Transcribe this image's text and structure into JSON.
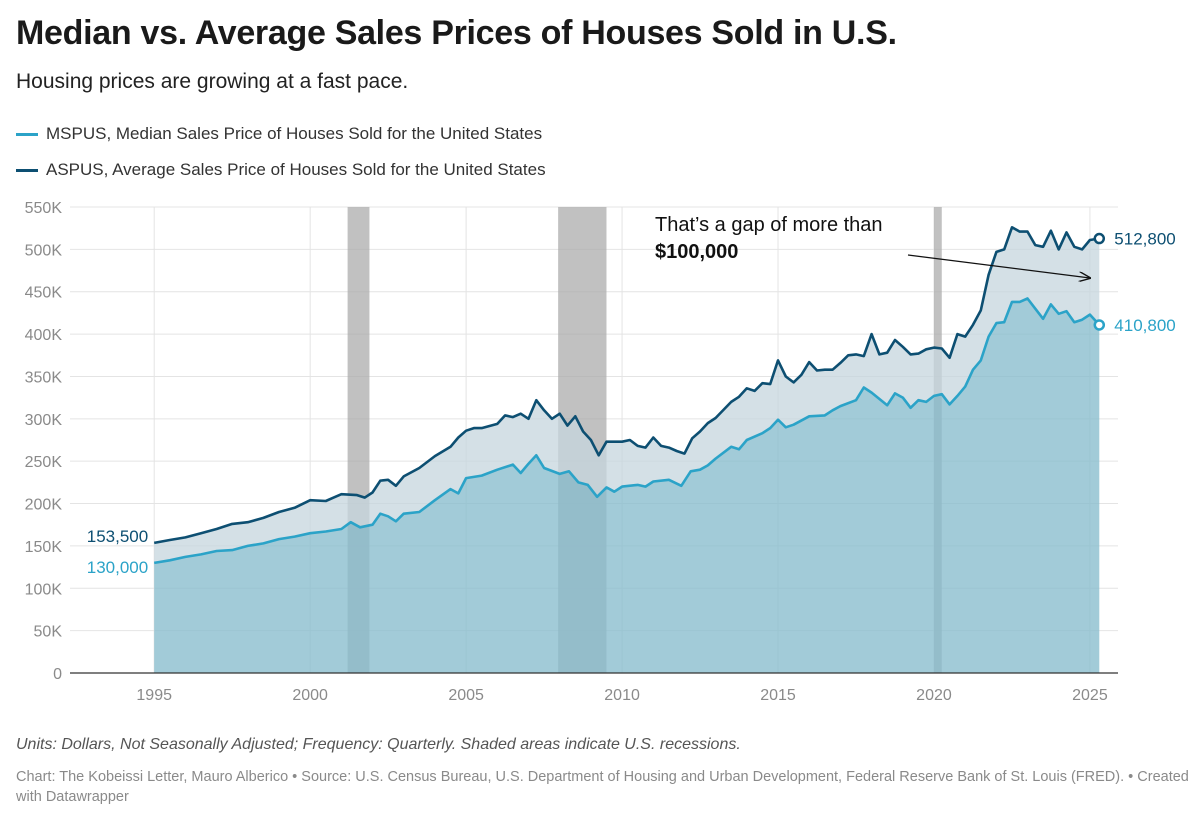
{
  "title": "Median vs. Average Sales Prices of Houses Sold in U.S.",
  "subtitle": "Housing prices are growing at a fast pace.",
  "notes": "Units: Dollars, Not Seasonally Adjusted; Frequency: Quarterly. Shaded areas indicate U.S. recessions.",
  "credit": "Chart: The Kobeissi Letter, Mauro Alberico • Source: U.S. Census Bureau, U.S. Department of Housing and Urban Development, Federal Reserve Bank of St. Louis (FRED). • Created with Datawrapper",
  "annotation": {
    "line1": "That’s a gap of more than",
    "line2": "$100,000"
  },
  "colors": {
    "median": "#2ba3c8",
    "average": "#0d4f72",
    "median_area": "#88bccd",
    "gap_area": "#c5d6dd",
    "recession": "#a9a9a9",
    "grid": "#e4e4e4"
  },
  "chart_data": {
    "type": "area",
    "x_label": "",
    "y_label": "",
    "xlim": [
      1992.3,
      2025.9
    ],
    "ylim": [
      0,
      550000
    ],
    "x_ticks": [
      1995,
      2000,
      2005,
      2010,
      2015,
      2020,
      2025
    ],
    "x_tick_labels": [
      "1995",
      "2000",
      "2005",
      "2010",
      "2015",
      "2020",
      "2025"
    ],
    "y_ticks": [
      0,
      50000,
      100000,
      150000,
      200000,
      250000,
      300000,
      350000,
      400000,
      450000,
      500000,
      550000
    ],
    "y_tick_labels": [
      "0",
      "50K",
      "100K",
      "150K",
      "200K",
      "250K",
      "300K",
      "350K",
      "400K",
      "450K",
      "500K",
      "550K"
    ],
    "grid": true,
    "legend_position": "top-left",
    "recessions": [
      [
        2001.2,
        2001.9
      ],
      [
        2007.95,
        2009.5
      ],
      [
        2020.0,
        2020.25
      ]
    ],
    "series": [
      {
        "name": "MSPUS, Median Sales Price of Houses Sold for the United States",
        "start_label": "130,000",
        "end_label": "410,800",
        "points": [
          [
            1995.0,
            130000
          ],
          [
            1995.5,
            133000
          ],
          [
            1996.0,
            137000
          ],
          [
            1996.5,
            140000
          ],
          [
            1997.0,
            144000
          ],
          [
            1997.5,
            145000
          ],
          [
            1998.0,
            150000
          ],
          [
            1998.5,
            153000
          ],
          [
            1999.0,
            158000
          ],
          [
            1999.5,
            161000
          ],
          [
            2000.0,
            165000
          ],
          [
            2000.5,
            167000
          ],
          [
            2001.0,
            170000
          ],
          [
            2001.3,
            178000
          ],
          [
            2001.6,
            172000
          ],
          [
            2002.0,
            175000
          ],
          [
            2002.25,
            188000
          ],
          [
            2002.5,
            185000
          ],
          [
            2002.75,
            179000
          ],
          [
            2003.0,
            188000
          ],
          [
            2003.5,
            190000
          ],
          [
            2004.0,
            204000
          ],
          [
            2004.5,
            217000
          ],
          [
            2004.75,
            212000
          ],
          [
            2005.0,
            230000
          ],
          [
            2005.5,
            233000
          ],
          [
            2006.0,
            240000
          ],
          [
            2006.5,
            246000
          ],
          [
            2006.75,
            236000
          ],
          [
            2007.0,
            247000
          ],
          [
            2007.25,
            257000
          ],
          [
            2007.5,
            242000
          ],
          [
            2008.0,
            235000
          ],
          [
            2008.3,
            238000
          ],
          [
            2008.6,
            225000
          ],
          [
            2008.9,
            222000
          ],
          [
            2009.2,
            208000
          ],
          [
            2009.5,
            219000
          ],
          [
            2009.75,
            214000
          ],
          [
            2010.0,
            220000
          ],
          [
            2010.5,
            222000
          ],
          [
            2010.75,
            220000
          ],
          [
            2011.0,
            226000
          ],
          [
            2011.5,
            228000
          ],
          [
            2011.9,
            221000
          ],
          [
            2012.2,
            238000
          ],
          [
            2012.5,
            240000
          ],
          [
            2012.75,
            245000
          ],
          [
            2013.0,
            253000
          ],
          [
            2013.5,
            267000
          ],
          [
            2013.75,
            264000
          ],
          [
            2014.0,
            275000
          ],
          [
            2014.5,
            283000
          ],
          [
            2014.75,
            289000
          ],
          [
            2015.0,
            299000
          ],
          [
            2015.25,
            290000
          ],
          [
            2015.5,
            293000
          ],
          [
            2016.0,
            303000
          ],
          [
            2016.5,
            304000
          ],
          [
            2016.75,
            310000
          ],
          [
            2017.0,
            315000
          ],
          [
            2017.5,
            322000
          ],
          [
            2017.75,
            337000
          ],
          [
            2018.0,
            331000
          ],
          [
            2018.3,
            322000
          ],
          [
            2018.5,
            316000
          ],
          [
            2018.75,
            330000
          ],
          [
            2019.0,
            325000
          ],
          [
            2019.25,
            313000
          ],
          [
            2019.5,
            322000
          ],
          [
            2019.75,
            320000
          ],
          [
            2020.0,
            327000
          ],
          [
            2020.25,
            329000
          ],
          [
            2020.5,
            317000
          ],
          [
            2020.75,
            327000
          ],
          [
            2021.0,
            338000
          ],
          [
            2021.25,
            358000
          ],
          [
            2021.5,
            369000
          ],
          [
            2021.75,
            397000
          ],
          [
            2022.0,
            413000
          ],
          [
            2022.25,
            414000
          ],
          [
            2022.5,
            438000
          ],
          [
            2022.75,
            438000
          ],
          [
            2023.0,
            442000
          ],
          [
            2023.25,
            430000
          ],
          [
            2023.5,
            418000
          ],
          [
            2023.75,
            435000
          ],
          [
            2024.0,
            424000
          ],
          [
            2024.25,
            427000
          ],
          [
            2024.5,
            414000
          ],
          [
            2024.75,
            417000
          ],
          [
            2025.0,
            423000
          ],
          [
            2025.3,
            410800
          ]
        ]
      },
      {
        "name": "ASPUS, Average Sales Price of Houses Sold for the United States",
        "start_label": "153,500",
        "end_label": "512,800",
        "points": [
          [
            1995.0,
            153500
          ],
          [
            1995.5,
            157000
          ],
          [
            1996.0,
            160000
          ],
          [
            1996.5,
            165000
          ],
          [
            1997.0,
            170000
          ],
          [
            1997.5,
            176000
          ],
          [
            1998.0,
            178000
          ],
          [
            1998.5,
            183000
          ],
          [
            1999.0,
            190000
          ],
          [
            1999.5,
            195000
          ],
          [
            2000.0,
            204000
          ],
          [
            2000.5,
            203000
          ],
          [
            2000.75,
            207000
          ],
          [
            2001.0,
            211000
          ],
          [
            2001.5,
            210000
          ],
          [
            2001.75,
            207000
          ],
          [
            2002.0,
            213000
          ],
          [
            2002.25,
            227000
          ],
          [
            2002.5,
            228000
          ],
          [
            2002.75,
            221000
          ],
          [
            2003.0,
            232000
          ],
          [
            2003.5,
            242000
          ],
          [
            2004.0,
            256000
          ],
          [
            2004.5,
            267000
          ],
          [
            2004.75,
            278000
          ],
          [
            2005.0,
            286000
          ],
          [
            2005.25,
            289000
          ],
          [
            2005.5,
            289000
          ],
          [
            2006.0,
            294000
          ],
          [
            2006.25,
            304000
          ],
          [
            2006.5,
            302000
          ],
          [
            2006.75,
            306000
          ],
          [
            2007.0,
            300000
          ],
          [
            2007.25,
            322000
          ],
          [
            2007.5,
            310000
          ],
          [
            2007.75,
            300000
          ],
          [
            2008.0,
            306000
          ],
          [
            2008.25,
            292000
          ],
          [
            2008.5,
            303000
          ],
          [
            2008.75,
            285000
          ],
          [
            2009.0,
            275000
          ],
          [
            2009.25,
            257000
          ],
          [
            2009.5,
            273000
          ],
          [
            2010.0,
            273000
          ],
          [
            2010.25,
            275000
          ],
          [
            2010.5,
            268000
          ],
          [
            2010.75,
            266000
          ],
          [
            2011.0,
            278000
          ],
          [
            2011.25,
            268000
          ],
          [
            2011.5,
            266000
          ],
          [
            2011.75,
            262000
          ],
          [
            2012.0,
            259000
          ],
          [
            2012.25,
            277000
          ],
          [
            2012.5,
            285000
          ],
          [
            2012.75,
            295000
          ],
          [
            2013.0,
            301000
          ],
          [
            2013.5,
            320000
          ],
          [
            2013.75,
            326000
          ],
          [
            2014.0,
            336000
          ],
          [
            2014.25,
            333000
          ],
          [
            2014.5,
            342000
          ],
          [
            2014.75,
            341000
          ],
          [
            2015.0,
            369000
          ],
          [
            2015.25,
            350000
          ],
          [
            2015.5,
            343000
          ],
          [
            2015.75,
            352000
          ],
          [
            2016.0,
            367000
          ],
          [
            2016.25,
            357000
          ],
          [
            2016.5,
            358000
          ],
          [
            2016.75,
            358000
          ],
          [
            2017.0,
            366000
          ],
          [
            2017.25,
            375000
          ],
          [
            2017.5,
            376000
          ],
          [
            2017.75,
            374000
          ],
          [
            2018.0,
            400000
          ],
          [
            2018.25,
            376000
          ],
          [
            2018.5,
            378000
          ],
          [
            2018.75,
            393000
          ],
          [
            2019.0,
            385000
          ],
          [
            2019.25,
            376000
          ],
          [
            2019.5,
            377000
          ],
          [
            2019.75,
            382000
          ],
          [
            2020.0,
            384000
          ],
          [
            2020.25,
            383000
          ],
          [
            2020.5,
            372000
          ],
          [
            2020.75,
            400000
          ],
          [
            2021.0,
            397000
          ],
          [
            2021.25,
            411000
          ],
          [
            2021.5,
            428000
          ],
          [
            2021.75,
            470000
          ],
          [
            2022.0,
            497000
          ],
          [
            2022.25,
            500000
          ],
          [
            2022.5,
            526000
          ],
          [
            2022.75,
            521000
          ],
          [
            2023.0,
            521000
          ],
          [
            2023.25,
            505000
          ],
          [
            2023.5,
            503000
          ],
          [
            2023.75,
            522000
          ],
          [
            2024.0,
            500000
          ],
          [
            2024.25,
            520000
          ],
          [
            2024.5,
            503000
          ],
          [
            2024.75,
            500000
          ],
          [
            2025.0,
            511000
          ],
          [
            2025.3,
            512800
          ]
        ]
      }
    ]
  }
}
